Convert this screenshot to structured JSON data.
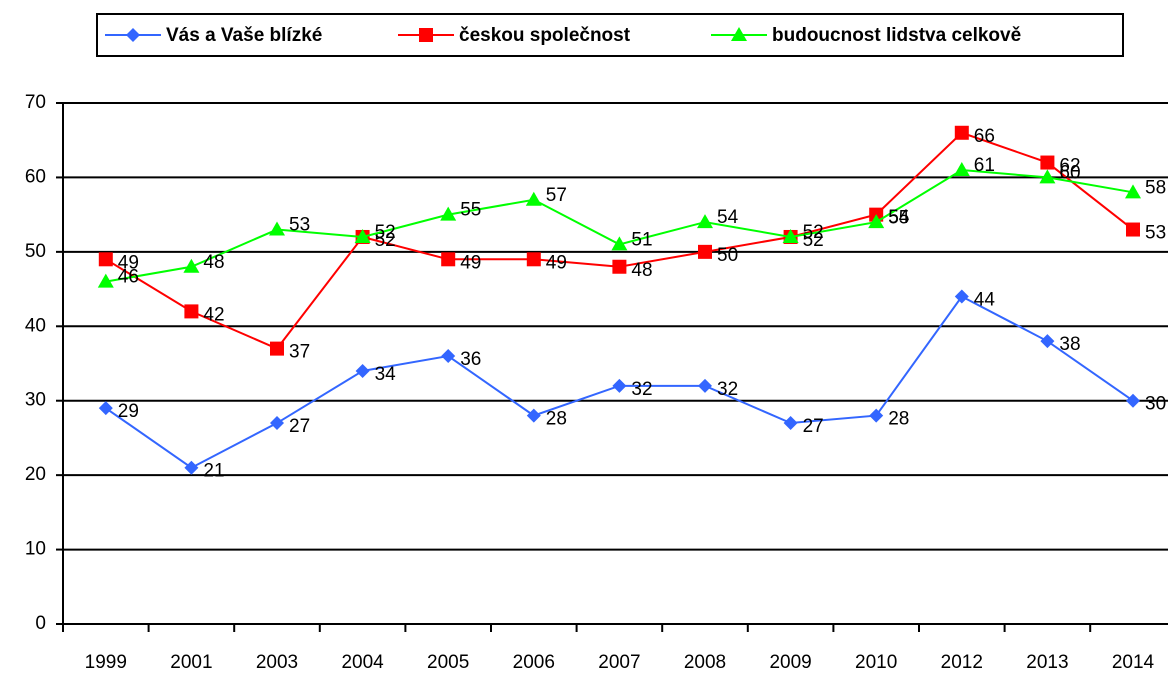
{
  "chart_data": {
    "type": "line",
    "categories": [
      "1999",
      "2001",
      "2003",
      "2004",
      "2005",
      "2006",
      "2007",
      "2008",
      "2009",
      "2010",
      "2012",
      "2013",
      "2014"
    ],
    "series": [
      {
        "name": "Vás a Vaše blízké",
        "color": "#3366ff",
        "marker": "diamond",
        "values": [
          29,
          21,
          27,
          34,
          36,
          28,
          32,
          32,
          27,
          28,
          44,
          38,
          30
        ]
      },
      {
        "name": "českou společnost",
        "color": "#ff0000",
        "marker": "square",
        "values": [
          49,
          42,
          37,
          52,
          49,
          49,
          48,
          50,
          52,
          55,
          66,
          62,
          53
        ]
      },
      {
        "name": "budoucnost lidstva celkově",
        "color": "#00ff00",
        "marker": "triangle",
        "values": [
          46,
          48,
          53,
          52,
          55,
          57,
          51,
          54,
          52,
          54,
          61,
          60,
          58
        ]
      }
    ],
    "ylim": [
      0,
      70
    ],
    "yticks": [
      0,
      10,
      20,
      30,
      40,
      50,
      60,
      70
    ],
    "grid": true,
    "legend": "top"
  }
}
